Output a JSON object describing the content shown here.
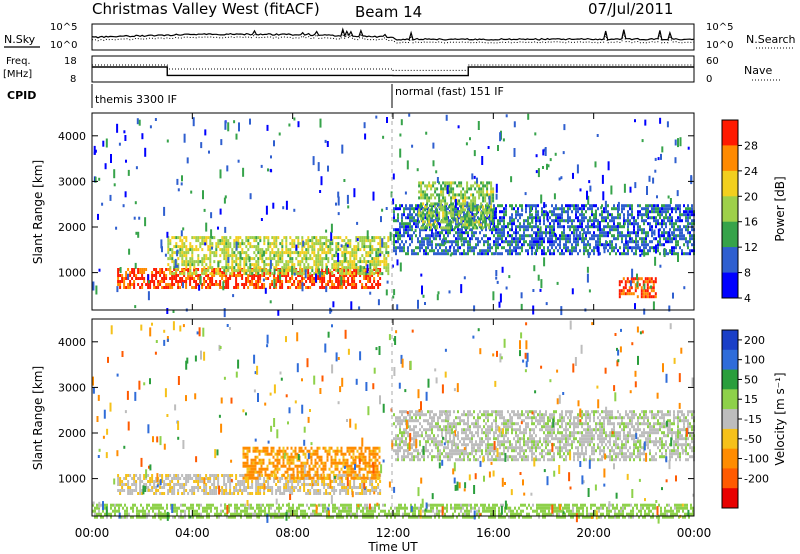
{
  "header": {
    "station": "Christmas Valley West (fitACF)",
    "beam": "Beam 14",
    "date": "07/Jul/2011"
  },
  "small_panels": {
    "nsky_label": "N.Sky",
    "nsearch_label": "N.Search",
    "freq_label_1": "Freq.",
    "freq_label_2": "[MHz]",
    "nave_label": "Nave",
    "cpid_label": "CPID",
    "noise_ticks_left": [
      "10^5",
      "10^0"
    ],
    "noise_ticks_right": [
      "10^5",
      "10^0"
    ],
    "freq_ticks_left": [
      "18",
      "8"
    ],
    "freq_ticks_right": [
      "60",
      "0"
    ],
    "cpid_modes": [
      "themis 3300 IF",
      "normal (fast) 151 IF"
    ],
    "freq_steps": [
      {
        "from": 0,
        "to": 3,
        "freq": 14.5,
        "nave": 45
      },
      {
        "from": 3,
        "to": 12,
        "freq": 10.3,
        "nave": 33
      },
      {
        "from": 12,
        "to": 15,
        "freq": 10.2,
        "nave": 29
      },
      {
        "from": 15,
        "to": 24,
        "freq": 14.5,
        "nave": 45
      }
    ]
  },
  "x_axis": {
    "label": "Time UT",
    "ticks": [
      "00:00",
      "04:00",
      "08:00",
      "12:00",
      "16:00",
      "20:00",
      "00:00"
    ]
  },
  "power_colorbar": {
    "label": "Power [dB]",
    "ticks": [
      "4",
      "8",
      "12",
      "16",
      "20",
      "24",
      "28"
    ],
    "colors": [
      "#0000ff",
      "#2f5fcf",
      "#36a34a",
      "#9ecf4a",
      "#f2cf1e",
      "#ff8a00",
      "#ff1a00"
    ]
  },
  "velocity_colorbar": {
    "label": "Velocity [m s⁻¹]",
    "ticks": [
      "200",
      "100",
      "50",
      "15",
      "-15",
      "-50",
      "-100",
      "-200"
    ],
    "colors": [
      "#1a3fc7",
      "#2f6cd9",
      "#2a9e3c",
      "#8ed14a",
      "#bdbdbd",
      "#f5c11a",
      "#ff8c00",
      "#ff5a00",
      "#e80000"
    ]
  },
  "chart_data": [
    {
      "type": "heatmap",
      "title": "Power",
      "xlabel": "Time UT",
      "ylabel": "Slant Range [km]",
      "xlim": [
        0,
        24
      ],
      "ylim": [
        180,
        4500
      ],
      "yticks": [
        1000,
        2000,
        3000,
        4000
      ],
      "colorbar": {
        "label": "Power [dB]",
        "range": [
          0,
          30
        ]
      },
      "features": [
        {
          "t0": 1.0,
          "t1": 11.5,
          "r0": 650,
          "r1": 1100,
          "value": 27
        },
        {
          "t0": 3.0,
          "t1": 11.8,
          "r0": 1000,
          "r1": 1800,
          "value": 16
        },
        {
          "t0": 12.0,
          "t1": 24.0,
          "r0": 1400,
          "r1": 2500,
          "value": 7
        },
        {
          "t0": 13.0,
          "t1": 16.0,
          "r0": 2000,
          "r1": 3000,
          "value": 14
        },
        {
          "t0": 21.0,
          "t1": 22.5,
          "r0": 450,
          "r1": 900,
          "value": 26
        }
      ]
    },
    {
      "type": "heatmap",
      "title": "Velocity",
      "xlabel": "Time UT",
      "ylabel": "Slant Range [km]",
      "xlim": [
        0,
        24
      ],
      "ylim": [
        180,
        4500
      ],
      "yticks": [
        1000,
        2000,
        3000,
        4000
      ],
      "colorbar": {
        "label": "Velocity [m s⁻¹]",
        "range": [
          -200,
          200
        ]
      },
      "features": [
        {
          "t0": 1.0,
          "t1": 11.5,
          "r0": 650,
          "r1": 1100,
          "value": -10
        },
        {
          "t0": 6.0,
          "t1": 11.5,
          "r0": 1000,
          "r1": 1700,
          "value": -60
        },
        {
          "t0": 12.0,
          "t1": 24.0,
          "r0": 1400,
          "r1": 2500,
          "value": 5
        },
        {
          "t0": 0.0,
          "t1": 24.0,
          "r0": 180,
          "r1": 450,
          "value": 30
        }
      ]
    }
  ]
}
